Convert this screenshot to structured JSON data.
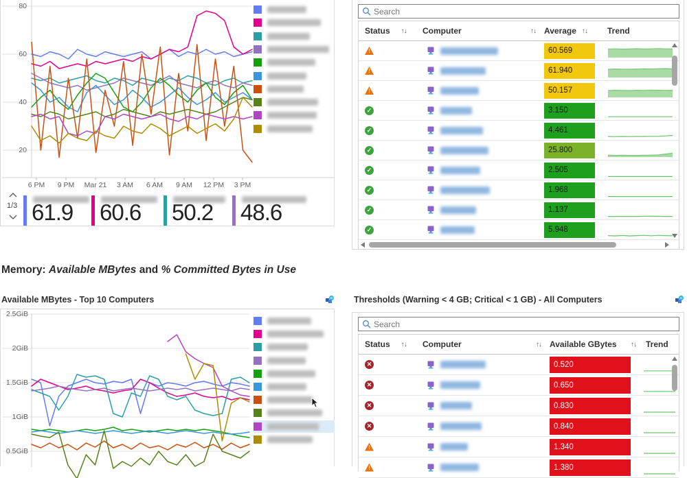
{
  "heading": {
    "part1": "Memory: ",
    "em1": "Available MBytes",
    "part2": " and ",
    "em2": "% Committed Bytes in Use"
  },
  "palette": [
    "#637CEF",
    "#E3008C",
    "#2AA0A4",
    "#9373C0",
    "#13A10E",
    "#3A96DD",
    "#CA5010",
    "#57811B",
    "#B146C2",
    "#AE8C00"
  ],
  "status_colors": {
    "warning": "#E8720D",
    "ok": "#3DA43D",
    "critical": "#A4262C"
  },
  "status_glyphs": {
    "warning": "!",
    "ok": "✓",
    "critical": "✕"
  },
  "value_colors": {
    "yellow": "#F2C80F",
    "green": "#1EA01E",
    "yellowgreen": "#7BB229",
    "red": "#E1111C"
  },
  "spark_colors": {
    "fill": "#ABDBA4",
    "stroke": "#7AC77A",
    "line": "#68C468"
  },
  "top_left_panel": {
    "pager": "1/3",
    "tiles": [
      {
        "color": "#637CEF",
        "value": "61.9",
        "name_w": 82
      },
      {
        "color": "#E3008C",
        "value": "60.6",
        "name_w": 82
      },
      {
        "color": "#2AA0A4",
        "value": "50.2",
        "name_w": 76
      },
      {
        "color": "#9373C0",
        "value": "48.6",
        "name_w": 94
      }
    ]
  },
  "chart_data": [
    {
      "type": "line",
      "title": "",
      "xlabel": "",
      "ylabel": "",
      "ylim": [
        8,
        80
      ],
      "y_ticks": [
        80,
        60,
        40,
        20
      ],
      "x_ticks": [
        "6 PM",
        "9 PM",
        "Mar 21",
        "3 AM",
        "6 AM",
        "9 AM",
        "12 PM",
        "3 PM"
      ],
      "grid": true,
      "legend_position": "right",
      "legend_redacted": true,
      "legend_widths": [
        70,
        95,
        75,
        110,
        85,
        70,
        65,
        90,
        88,
        80
      ],
      "series": [
        {
          "color_index": 0,
          "values": [
            60,
            59,
            61,
            60,
            58,
            62,
            60,
            59,
            61,
            60,
            59,
            60,
            61,
            58,
            60,
            62,
            59,
            61,
            60,
            62,
            60,
            61,
            59,
            60,
            61
          ]
        },
        {
          "color_index": 1,
          "values": [
            56,
            55,
            57,
            54,
            55,
            56,
            55,
            57,
            56,
            57,
            58,
            57,
            59,
            58,
            60,
            62,
            61,
            63,
            76,
            78,
            77,
            74,
            63,
            60,
            62
          ]
        },
        {
          "color_index": 2,
          "values": [
            50,
            49,
            50,
            48,
            49,
            50,
            51,
            49,
            48,
            50,
            49,
            47,
            50,
            49,
            48,
            50,
            49,
            51,
            50,
            48,
            47,
            49,
            50,
            48,
            49
          ]
        },
        {
          "color_index": 3,
          "values": [
            52,
            50,
            48,
            47,
            46,
            47,
            45,
            46,
            47,
            48,
            50,
            49,
            48,
            47,
            49,
            51,
            48,
            47,
            46,
            48,
            49,
            47,
            46,
            48,
            47
          ]
        },
        {
          "color_index": 4,
          "values": [
            38,
            42,
            45,
            40,
            37,
            43,
            48,
            52,
            50,
            44,
            38,
            36,
            40,
            46,
            50,
            47,
            43,
            40,
            45,
            48,
            42,
            39,
            44,
            47,
            41
          ]
        },
        {
          "color_index": 5,
          "values": [
            48,
            45,
            40,
            42,
            38,
            36,
            44,
            47,
            43,
            39,
            41,
            45,
            42,
            38,
            40,
            43,
            46,
            42,
            39,
            41,
            44,
            40,
            42,
            44,
            41
          ]
        },
        {
          "color_index": 6,
          "values": [
            65,
            20,
            55,
            17,
            50,
            25,
            58,
            19,
            45,
            30,
            57,
            22,
            60,
            35,
            63,
            18,
            52,
            28,
            64,
            24,
            58,
            30,
            55,
            20,
            15
          ]
        },
        {
          "color_index": 7,
          "values": [
            35,
            34,
            36,
            35,
            33,
            34,
            35,
            36,
            34,
            35,
            37,
            36,
            35,
            34,
            36,
            35,
            36,
            37,
            36,
            35,
            36,
            38,
            40,
            42,
            41
          ]
        },
        {
          "color_index": 8,
          "values": [
            34,
            35,
            33,
            34,
            27,
            26,
            28,
            27,
            34,
            33,
            35,
            34,
            33,
            34,
            35,
            33,
            32,
            34,
            33,
            35,
            34,
            33,
            34,
            33,
            34
          ]
        },
        {
          "color_index": 9,
          "values": [
            30,
            24,
            26,
            23,
            27,
            25,
            24,
            28,
            26,
            25,
            30,
            28,
            27,
            31,
            29,
            26,
            28,
            30,
            27,
            29,
            31,
            28,
            33,
            42,
            38
          ]
        }
      ]
    },
    {
      "type": "line",
      "title": "Available MBytes - Top 10 Computers",
      "xlabel": "",
      "ylabel": "",
      "ylim": [
        0.25,
        2.5
      ],
      "y_ticks": [
        "2.5GiB",
        "2GiB",
        "1.5GiB",
        "1GiB",
        "0.5GiB"
      ],
      "y_tick_values": [
        2.5,
        2,
        1.5,
        1,
        0.5
      ],
      "x_ticks": [],
      "grid": true,
      "legend_position": "right",
      "legend_redacted": true,
      "legend_widths": [
        78,
        100,
        72,
        68,
        85,
        70,
        82,
        98,
        92,
        80
      ],
      "legend_highlight_index": 8,
      "series": [
        {
          "color_index": 0,
          "values": [
            1.55,
            1.5,
            0.87,
            1.3,
            1.45,
            1.5,
            1.55,
            1.5,
            1.48,
            1.52,
            1.5,
            1.55,
            1.05,
            1.5,
            1.45,
            1.5,
            1.48,
            1.45,
            1.5,
            1.52,
            1.48,
            1.45,
            1.5,
            1.48,
            1.45
          ]
        },
        {
          "color_index": 1,
          "values": [
            1.45,
            1.55,
            1.5,
            1.45,
            1.4,
            1.42,
            1.45,
            1.4,
            1.38,
            1.35,
            1.38,
            1.4,
            1.55,
            1.5,
            1.42,
            1.35,
            1.3,
            1.32,
            1.35,
            1.3,
            1.28,
            1.3,
            1.25,
            1.28,
            1.25
          ]
        },
        {
          "color_index": 2,
          "values": [
            1.4,
            1.35,
            1.3,
            1.1,
            1.3,
            1.62,
            1.58,
            1.6,
            1.55,
            1.05,
            1.0,
            1.35,
            1.3,
            1.6,
            1.55,
            1.3,
            1.25,
            1.3,
            1.1,
            1.05,
            1.02,
            1.05,
            1.55,
            1.58,
            1.5
          ]
        },
        {
          "color_index": 3,
          "values": [
            1.38,
            1.4,
            1.42,
            1.45,
            1.42,
            1.4,
            1.38,
            1.4,
            1.42,
            1.38,
            1.4,
            1.42,
            1.4,
            1.38,
            1.4,
            1.42,
            1.4,
            1.42,
            1.38,
            1.4,
            1.42,
            1.4,
            1.38,
            1.42,
            1.4
          ]
        },
        {
          "color_index": 4,
          "values": [
            0.82,
            0.8,
            0.82,
            0.8,
            0.78,
            0.8,
            0.82,
            0.8,
            0.82,
            0.85,
            0.8,
            0.82,
            0.8,
            0.78,
            0.8,
            0.82,
            0.8,
            0.82,
            0.8,
            0.82,
            0.8,
            0.78,
            0.75,
            0.72,
            0.7
          ]
        },
        {
          "color_index": 5,
          "values": [
            0.78,
            0.8,
            0.78,
            0.76,
            0.78,
            0.8,
            0.78,
            0.76,
            0.78,
            0.8,
            0.78,
            0.76,
            0.78,
            0.8,
            0.78,
            0.76,
            0.78,
            0.8,
            0.78,
            0.76,
            0.78,
            0.76,
            0.75,
            0.76,
            0.78
          ]
        },
        {
          "color_index": 6,
          "values": [
            0.6,
            0.55,
            0.62,
            0.55,
            0.6,
            0.52,
            0.62,
            0.56,
            0.65,
            0.55,
            0.6,
            0.53,
            0.62,
            0.55,
            0.58,
            0.52,
            0.6,
            0.56,
            0.63,
            0.55,
            0.6,
            0.53,
            0.62,
            0.55,
            0.6
          ]
        },
        {
          "color_index": 7,
          "values": [
            0.75,
            0.72,
            0.7,
            0.78,
            0.3,
            0.1,
            0.45,
            0.3,
            0.8,
            0.25,
            0.35,
            0.28,
            0.4,
            0.3,
            0.5,
            0.35,
            0.3,
            0.45,
            0.28,
            0.35,
            0.75,
            0.5,
            0.45,
            0.4,
            0.5
          ]
        },
        {
          "color_index": 8,
          "values": [
            null,
            null,
            null,
            null,
            null,
            null,
            null,
            null,
            null,
            null,
            null,
            null,
            null,
            null,
            null,
            2.1,
            2.2,
            1.95,
            1.85,
            1.78,
            1.72,
            1.45,
            1.38,
            1.32,
            1.3
          ]
        },
        {
          "color_index": 9,
          "values": [
            null,
            null,
            null,
            null,
            null,
            null,
            null,
            null,
            null,
            null,
            null,
            null,
            null,
            null,
            null,
            null,
            null,
            1.92,
            1.55,
            1.78,
            1.75,
            0.65,
            1.2,
            1.28,
            1.22
          ]
        }
      ]
    }
  ],
  "top_right_table": {
    "search_placeholder": "Search",
    "sort_glyph": "↑↓",
    "columns": [
      "Status",
      "Computer",
      "Average",
      "Trend"
    ],
    "rows": [
      {
        "status": "warning",
        "name_w": 84,
        "value": "60.569",
        "color": "yellow",
        "spark": {
          "fill": true,
          "points": [
            62,
            64,
            62,
            63,
            65,
            63,
            64,
            66,
            64,
            63
          ]
        }
      },
      {
        "status": "warning",
        "name_w": 66,
        "value": "61.940",
        "color": "yellow",
        "spark": {
          "fill": true,
          "points": [
            60,
            62,
            61,
            60,
            62,
            63,
            62,
            64,
            65,
            63
          ]
        }
      },
      {
        "status": "warning",
        "name_w": 56,
        "value": "50.157",
        "color": "yellow",
        "spark": {
          "fill": true,
          "points": [
            50,
            52,
            51,
            50,
            52,
            51,
            53,
            52,
            51,
            52
          ]
        }
      },
      {
        "status": "ok",
        "name_w": 46,
        "value": "3.150",
        "color": "green",
        "spark": {
          "fill": false,
          "points": [
            4,
            4,
            4,
            4,
            4,
            4,
            4,
            4,
            4,
            4
          ]
        }
      },
      {
        "status": "ok",
        "name_w": 62,
        "value": "4.461",
        "color": "green",
        "spark": {
          "fill": false,
          "points": [
            5,
            4,
            5,
            4,
            5,
            5,
            6,
            6,
            9,
            12
          ]
        }
      },
      {
        "status": "ok",
        "name_w": 70,
        "value": "25.800",
        "color": "yellowgreen",
        "spark": {
          "fill": true,
          "points": [
            14,
            12,
            13,
            12,
            12,
            13,
            14,
            16,
            22,
            28
          ]
        }
      },
      {
        "status": "ok",
        "name_w": 58,
        "value": "2.505",
        "color": "green",
        "spark": {
          "fill": false,
          "points": [
            3,
            3,
            3,
            3,
            3,
            3,
            3,
            3,
            3,
            3
          ]
        }
      },
      {
        "status": "ok",
        "name_w": 72,
        "value": "1.968",
        "color": "green",
        "spark": {
          "fill": false,
          "points": [
            2,
            2,
            2,
            2,
            2,
            2,
            2,
            2,
            2,
            2
          ]
        }
      },
      {
        "status": "ok",
        "name_w": 52,
        "value": "1.137",
        "color": "green",
        "spark": {
          "fill": false,
          "points": [
            2,
            2,
            2,
            2,
            2,
            3,
            4,
            3,
            2,
            2
          ]
        }
      },
      {
        "status": "ok",
        "name_w": 50,
        "value": "5.948",
        "color": "green",
        "spark": {
          "fill": false,
          "points": [
            7,
            5,
            8,
            5,
            7,
            9,
            6,
            9,
            7,
            6
          ]
        }
      }
    ]
  },
  "bottom_right_table": {
    "title": "Thresholds (Warning < 4 GB; Critical < 1 GB) - All Computers",
    "search_placeholder": "Search",
    "sort_glyph": "↑↓",
    "columns": [
      "Status",
      "Computer",
      "Available GBytes",
      "Trend"
    ],
    "rows": [
      {
        "status": "critical",
        "name_w": 66,
        "value": "0.520",
        "color": "red",
        "spark": {
          "fill": false,
          "points": [
            6,
            6,
            6,
            6,
            6,
            6
          ]
        }
      },
      {
        "status": "critical",
        "name_w": 58,
        "value": "0.650",
        "color": "red",
        "spark": {
          "fill": false,
          "points": [
            6,
            6,
            6,
            6,
            6,
            6
          ]
        }
      },
      {
        "status": "critical",
        "name_w": 46,
        "value": "0.830",
        "color": "red",
        "spark": {
          "fill": false,
          "points": [
            5,
            5,
            5,
            5,
            5,
            5
          ]
        }
      },
      {
        "status": "critical",
        "name_w": 60,
        "value": "0.840",
        "color": "red",
        "spark": {
          "fill": false,
          "points": [
            5,
            5,
            5,
            5,
            5,
            5
          ]
        }
      },
      {
        "status": "warning",
        "name_w": 40,
        "value": "1.340",
        "color": "red",
        "spark": {
          "fill": false,
          "points": [
            5,
            5,
            5,
            5,
            5,
            5
          ]
        }
      },
      {
        "status": "warning",
        "name_w": 56,
        "value": "1.380",
        "color": "red",
        "spark": {
          "fill": false,
          "points": [
            5,
            5,
            5,
            5,
            5,
            5
          ]
        }
      }
    ]
  }
}
